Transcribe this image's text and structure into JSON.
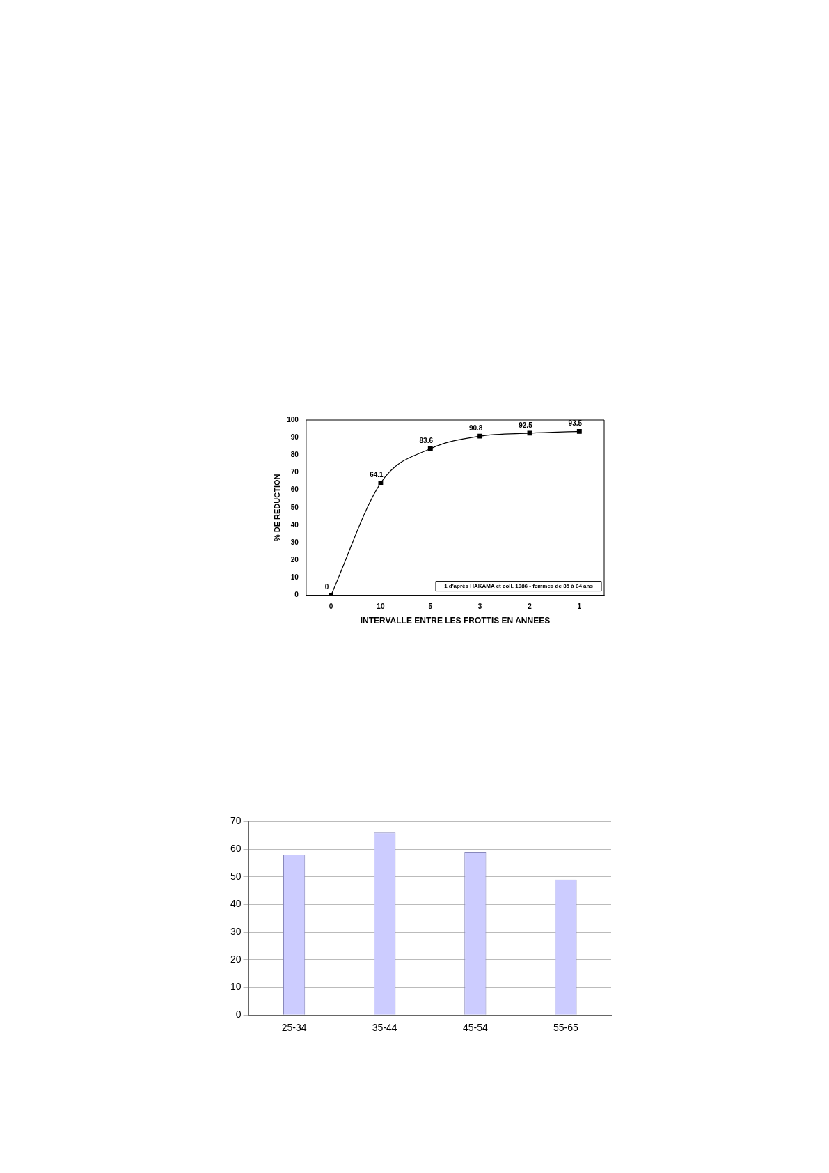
{
  "chart_data": [
    {
      "type": "line",
      "categories": [
        "0",
        "10",
        "5",
        "3",
        "2",
        "1"
      ],
      "xlabel": "INTERVALLE ENTRE LES FROTTIS EN ANNEES",
      "ylabel": "% DE REDUCTION",
      "series": [
        {
          "color": "#000000",
          "values": [
            0,
            64.1,
            83.6,
            90.8,
            92.5,
            93.5
          ]
        }
      ],
      "ylim": [
        0,
        100
      ],
      "yticks": [
        0,
        10,
        20,
        30,
        40,
        50,
        60,
        70,
        80,
        90,
        100
      ],
      "data_labels": true,
      "marker": "square",
      "line_style": "solid",
      "annotations": [
        "1 d'après HAKAMA et coll. 1986 - femmes de 35 à 64 ans"
      ]
    },
    {
      "type": "bar",
      "categories": [
        "25-34",
        "35-44",
        "45-54",
        "55-65"
      ],
      "series": [
        {
          "color": "#ccccff",
          "values": [
            58,
            66,
            59,
            49
          ]
        }
      ],
      "ylim": [
        0,
        70
      ],
      "yticks": [
        0,
        10,
        20,
        30,
        40,
        50,
        60,
        70
      ],
      "grid": "y"
    }
  ]
}
